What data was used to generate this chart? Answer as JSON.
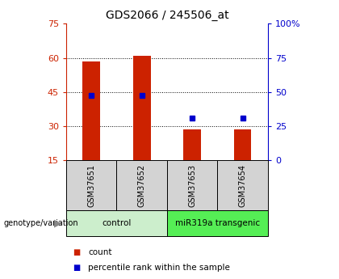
{
  "title": "GDS2066 / 245506_at",
  "samples": [
    "GSM37651",
    "GSM37652",
    "GSM37653",
    "GSM37654"
  ],
  "bar_bottom": 15,
  "bar_tops": [
    58.5,
    61.0,
    28.5,
    28.5
  ],
  "percentile_values": [
    43.5,
    43.5,
    33.5,
    33.5
  ],
  "ylim": [
    15,
    75
  ],
  "yticks_left": [
    15,
    30,
    45,
    60,
    75
  ],
  "yticks_right": [
    0,
    25,
    50,
    75,
    100
  ],
  "bar_color": "#cc2200",
  "percentile_color": "#0000cc",
  "group_labels": [
    "control",
    "miR319a transgenic"
  ],
  "group_ranges": [
    [
      0,
      1
    ],
    [
      2,
      3
    ]
  ],
  "group_bg_light": "#cceecc",
  "group_bg_bright": "#55ee55",
  "sample_box_color": "#d3d3d3",
  "genotype_label": "genotype/variation",
  "legend_items": [
    "count",
    "percentile rank within the sample"
  ],
  "title_fontsize": 10,
  "tick_fontsize": 8,
  "label_fontsize": 8,
  "bar_width": 0.35
}
